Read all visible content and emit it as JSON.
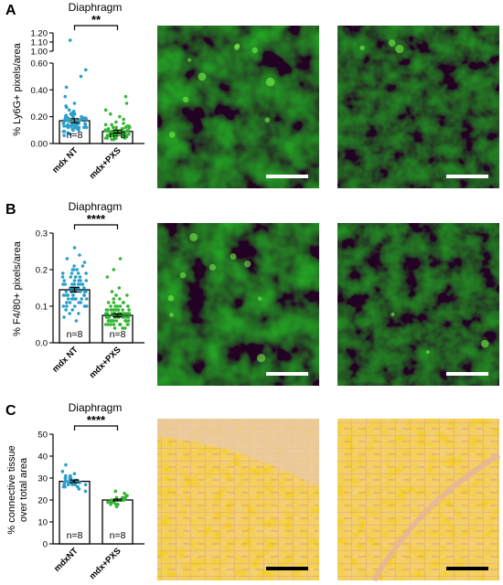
{
  "figure": {
    "panels": [
      {
        "letter": "A",
        "title": "Diaphragm",
        "ylabel": "% Ly6G+ pixels/area",
        "significance": "**",
        "scalebar_color": "#ffffff",
        "image_style": "green"
      },
      {
        "letter": "B",
        "title": "Diaphragm",
        "ylabel": "% F4/80+ pixels/area",
        "significance": "****",
        "scalebar_color": "#ffffff",
        "image_style": "green"
      },
      {
        "letter": "C",
        "title": "Diaphragm",
        "ylabel": [
          "% connective tissue",
          "over total area"
        ],
        "significance": "****",
        "scalebar_color": "#000000",
        "image_style": "histology"
      }
    ],
    "colors": {
      "nt": "#2a9fc9",
      "pxs": "#35b535",
      "bar_fill": "#ffffff",
      "bar_edge": "#000000"
    }
  },
  "chart_data": [
    {
      "type": "bar",
      "title": "Diaphragm",
      "xlabel": "",
      "ylabel": "% Ly6G+ pixels/area",
      "categories": [
        "mdx NT",
        "mdx+PXS"
      ],
      "values": [
        0.17,
        0.09
      ],
      "sem": [
        0.015,
        0.01
      ],
      "n_labels": [
        "n=8",
        "n=8"
      ],
      "axis_break": true,
      "lower_range": [
        0,
        0.6
      ],
      "upper_range": [
        1.0,
        1.2
      ],
      "lower_ticks": [
        0.0,
        0.2,
        0.4,
        0.6
      ],
      "upper_ticks": [
        1.0,
        1.1,
        1.2
      ],
      "tick_labels_lower": [
        "0.00",
        "0.20",
        "0.40",
        "0.60"
      ],
      "tick_labels_upper": [
        "1.00",
        "1.10",
        "1.20"
      ],
      "points": [
        [
          0.13,
          0.15,
          0.18,
          0.12,
          0.1,
          0.22,
          0.16,
          0.19,
          0.14,
          0.11,
          0.25,
          0.2,
          0.17,
          0.13,
          0.3,
          0.08,
          0.15,
          0.21,
          0.12,
          0.16,
          0.27,
          0.09,
          0.14,
          0.18,
          0.35,
          0.11,
          0.19,
          0.13,
          0.23,
          0.15,
          0.1,
          0.17,
          0.42,
          0.12,
          0.2,
          0.14,
          0.16,
          0.07,
          0.28,
          0.18,
          0.13,
          0.22,
          0.06,
          0.15,
          0.19,
          0.12,
          0.24,
          0.17,
          0.11,
          0.14,
          0.5,
          0.16,
          0.2,
          0.13,
          0.18,
          0.09,
          0.15,
          0.21,
          0.12,
          0.17,
          0.55,
          1.12
        ],
        [
          0.05,
          0.08,
          0.1,
          0.06,
          0.12,
          0.04,
          0.09,
          0.07,
          0.15,
          0.11,
          0.03,
          0.08,
          0.06,
          0.13,
          0.1,
          0.05,
          0.18,
          0.07,
          0.09,
          0.04,
          0.12,
          0.06,
          0.22,
          0.08,
          0.11,
          0.05,
          0.14,
          0.07,
          0.1,
          0.03,
          0.09,
          0.16,
          0.06,
          0.12,
          0.08,
          0.05,
          0.2,
          0.07,
          0.1,
          0.04,
          0.13,
          0.06,
          0.25,
          0.09,
          0.11,
          0.05,
          0.08,
          0.3,
          0.07,
          0.12,
          0.06,
          0.1,
          0.04,
          0.14,
          0.08,
          0.35,
          0.09,
          0.06
        ]
      ]
    },
    {
      "type": "bar",
      "title": "Diaphragm",
      "xlabel": "",
      "ylabel": "% F4/80+ pixels/area",
      "categories": [
        "mdx NT",
        "mdx+PXS"
      ],
      "values": [
        0.145,
        0.075
      ],
      "sem": [
        0.006,
        0.004
      ],
      "n_labels": [
        "n=8",
        "n=8"
      ],
      "ylim": [
        0,
        0.3
      ],
      "ticks": [
        0.0,
        0.1,
        0.2,
        0.3
      ],
      "tick_labels": [
        "0.0",
        "0.1",
        "0.2",
        "0.3"
      ],
      "points": [
        [
          0.12,
          0.15,
          0.18,
          0.1,
          0.14,
          0.2,
          0.16,
          0.13,
          0.08,
          0.17,
          0.22,
          0.11,
          0.15,
          0.19,
          0.13,
          0.09,
          0.16,
          0.24,
          0.12,
          0.14,
          0.18,
          0.1,
          0.15,
          0.21,
          0.13,
          0.07,
          0.17,
          0.12,
          0.19,
          0.14,
          0.11,
          0.16,
          0.26,
          0.13,
          0.15,
          0.18,
          0.1,
          0.14,
          0.2,
          0.12,
          0.16,
          0.09,
          0.17,
          0.13,
          0.23,
          0.15,
          0.11,
          0.18,
          0.14,
          0.12,
          0.16,
          0.19,
          0.1,
          0.15,
          0.13,
          0.17,
          0.08,
          0.14,
          0.2,
          0.12,
          0.16,
          0.11,
          0.18,
          0.15,
          0.13,
          0.06,
          0.17,
          0.14,
          0.21,
          0.12,
          0.16,
          0.1,
          0.15,
          0.19,
          0.13,
          0.14
        ],
        [
          0.06,
          0.08,
          0.05,
          0.09,
          0.07,
          0.1,
          0.04,
          0.08,
          0.06,
          0.11,
          0.07,
          0.05,
          0.09,
          0.08,
          0.12,
          0.06,
          0.07,
          0.1,
          0.05,
          0.08,
          0.13,
          0.06,
          0.09,
          0.07,
          0.04,
          0.1,
          0.08,
          0.06,
          0.11,
          0.07,
          0.05,
          0.09,
          0.14,
          0.08,
          0.06,
          0.07,
          0.1,
          0.05,
          0.08,
          0.09,
          0.06,
          0.12,
          0.07,
          0.04,
          0.08,
          0.1,
          0.06,
          0.09,
          0.07,
          0.15,
          0.05,
          0.08,
          0.06,
          0.11,
          0.07,
          0.09,
          0.05,
          0.08,
          0.18,
          0.06,
          0.07,
          0.1,
          0.08,
          0.05,
          0.09,
          0.06,
          0.13,
          0.07,
          0.08,
          0.2,
          0.06,
          0.09,
          0.07,
          0.05,
          0.11,
          0.08,
          0.06,
          0.23,
          0.07,
          0.09
        ]
      ]
    },
    {
      "type": "bar",
      "title": "Diaphragm",
      "xlabel": "",
      "ylabel": "% connective tissue over total area",
      "categories": [
        "mdxNT",
        "mdx+PXS"
      ],
      "values": [
        28.5,
        20
      ],
      "sem": [
        0.6,
        0.4
      ],
      "n_labels": [
        "n=8",
        "n=8"
      ],
      "ylim": [
        0,
        50
      ],
      "ticks": [
        0,
        10,
        20,
        30,
        40,
        50
      ],
      "tick_labels": [
        "0",
        "10",
        "20",
        "30",
        "40",
        "50"
      ],
      "points": [
        [
          26,
          28,
          30,
          27,
          29,
          31,
          25,
          28,
          33,
          27,
          30,
          29,
          26,
          28,
          32,
          27,
          29,
          24,
          28,
          30,
          27,
          29,
          36,
          28,
          26,
          31,
          28,
          27
        ],
        [
          19,
          21,
          20,
          18,
          22,
          20,
          19,
          21,
          17,
          20,
          23,
          19,
          20,
          18,
          21,
          22,
          19,
          20,
          24,
          18,
          20,
          21,
          19,
          20
        ]
      ]
    }
  ]
}
